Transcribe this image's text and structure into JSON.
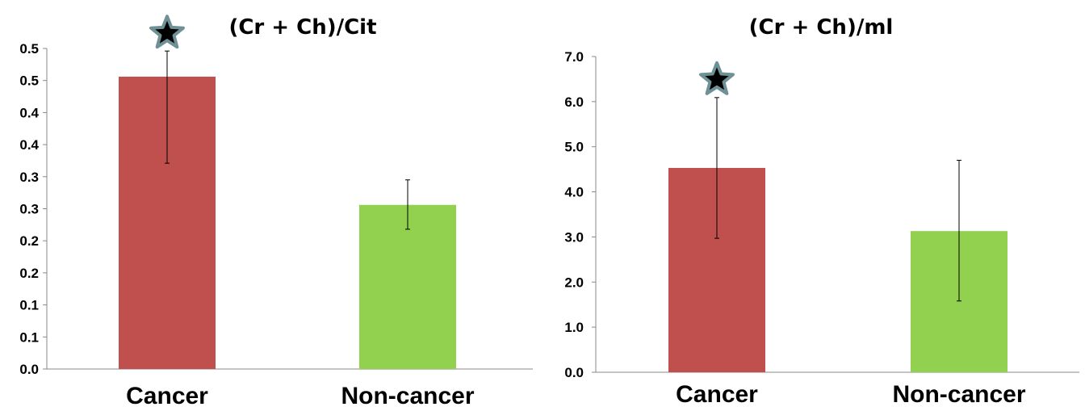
{
  "chart_data": [
    {
      "type": "bar",
      "title": "(Cr + Ch)/Cit",
      "categories": [
        "Cancer",
        "Non-cancer"
      ],
      "values": [
        0.456,
        0.256
      ],
      "error_low": [
        0.321,
        0.218
      ],
      "error_high": [
        0.496,
        0.295
      ],
      "colors": [
        "#c0504d",
        "#92d050"
      ],
      "significance_marker": [
        true,
        false
      ],
      "ylim": [
        0,
        0.5
      ],
      "yticks": [
        0,
        0.05,
        0.1,
        0.15,
        0.2,
        0.25,
        0.3,
        0.35,
        0.4,
        0.45,
        0.5
      ],
      "ytick_labels": [
        "0.0",
        "0.1",
        "0.1",
        "0.2",
        "0.2",
        "0.3",
        "0.3",
        "0.4",
        "0.4",
        "0.5",
        "0.5"
      ],
      "xlabel": "",
      "ylabel": ""
    },
    {
      "type": "bar",
      "title": "(Cr + Ch)/ml",
      "categories": [
        "Cancer",
        "Non-cancer"
      ],
      "values": [
        4.53,
        3.13
      ],
      "error_low": [
        2.97,
        1.58
      ],
      "error_high": [
        6.09,
        4.7
      ],
      "colors": [
        "#c0504d",
        "#92d050"
      ],
      "significance_marker": [
        true,
        false
      ],
      "ylim": [
        0,
        7
      ],
      "yticks": [
        0,
        1,
        2,
        3,
        4,
        5,
        6,
        7
      ],
      "ytick_labels": [
        "0.0",
        "1.0",
        "2.0",
        "3.0",
        "4.0",
        "5.0",
        "6.0",
        "7.0"
      ],
      "xlabel": "",
      "ylabel": ""
    }
  ]
}
